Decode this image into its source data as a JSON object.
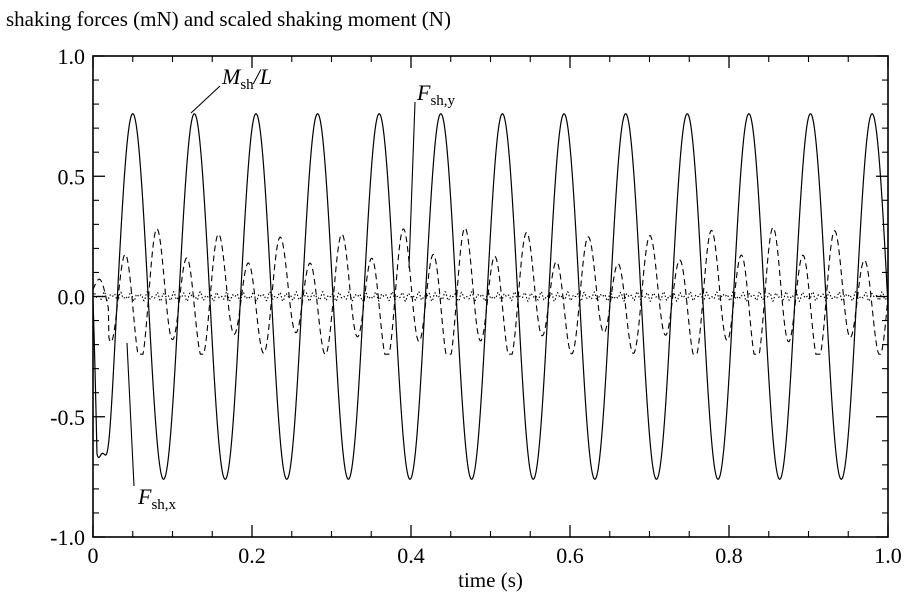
{
  "chart_data": {
    "type": "line",
    "title": "",
    "ylabel": "shaking forces (mN) and scaled shaking moment (N)",
    "xlabel": "time (s)",
    "xlim": [
      0,
      1.0
    ],
    "ylim": [
      -1.0,
      1.0
    ],
    "grid": false,
    "x_ticks": [
      0,
      0.2,
      0.4,
      0.6,
      0.8,
      1.0
    ],
    "x_tick_labels": [
      "0",
      "0.2",
      "0.4",
      "0.6",
      "0.8",
      "1.0"
    ],
    "y_ticks": [
      -1.0,
      -0.5,
      0.0,
      0.5,
      1.0
    ],
    "y_tick_labels": [
      "-1.0",
      "-0.5",
      "0.0",
      "0.5",
      "1.0"
    ],
    "annotations": [
      {
        "main": "M",
        "sub": "sh",
        "suffix": "/L",
        "series": "moment",
        "at": [
          0.13,
          0.76
        ]
      },
      {
        "main": "F",
        "sub": "sh,y",
        "suffix": "",
        "series": "fy",
        "at": [
          0.403,
          0.14
        ]
      },
      {
        "main": "F",
        "sub": "sh,x",
        "suffix": "",
        "series": "fx",
        "at": [
          0.0175,
          -0.3
        ]
      }
    ],
    "series": [
      {
        "key": "moment",
        "style": "solid",
        "period_s": 0.0775,
        "amplitude": 0.76,
        "phase_peak_s": 0.05,
        "initial_min": -0.64,
        "initial_min_t": 0.012
      },
      {
        "key": "fy",
        "style": "dashed",
        "fundamental_period_s": 0.0775,
        "main_max_range": [
          0.26,
          0.31
        ],
        "secondary_max_range": [
          0.12,
          0.16
        ],
        "min_value": -0.24
      },
      {
        "key": "fx",
        "style": "dotted",
        "amplitude": 0.02,
        "baseline": 0.0
      }
    ]
  }
}
